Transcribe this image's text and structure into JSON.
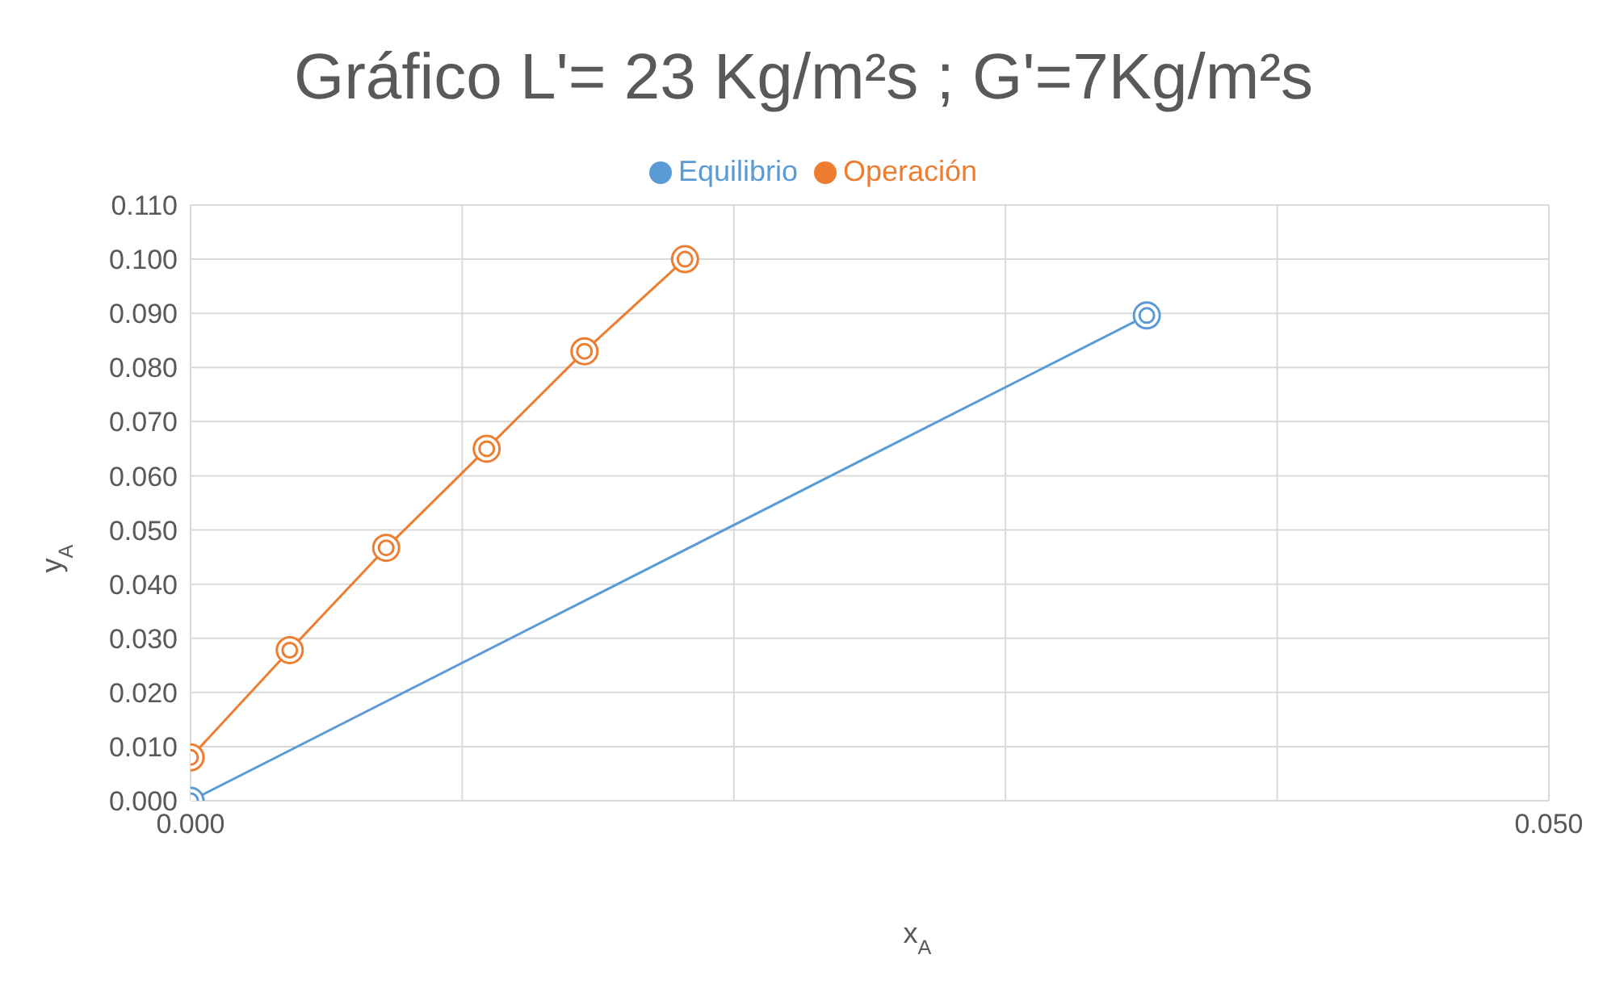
{
  "chart_data": {
    "type": "line",
    "title": "Gráfico L'= 23 Kg/m²s ; G'=7Kg/m²s",
    "xlabel": "x$_{A}$",
    "ylabel": "y$_{A}$",
    "series": [
      {
        "name": "Equilibrio",
        "color": "#5b9bd5",
        "x": [
          0,
          0.0352
        ],
        "values": [
          0,
          0.0896
        ]
      },
      {
        "name": "Operación",
        "color": "#ed7d31",
        "x": [
          0,
          0.00365,
          0.0072,
          0.0109,
          0.0145,
          0.0182
        ],
        "values": [
          0.008,
          0.0278,
          0.0467,
          0.065,
          0.083,
          0.1
        ]
      }
    ],
    "xlim": [
      0,
      0.05
    ],
    "xticks": [
      {
        "value": 0,
        "label": "0.000"
      },
      {
        "value": 0.01,
        "label": null
      },
      {
        "value": 0.02,
        "label": null
      },
      {
        "value": 0.03,
        "label": null
      },
      {
        "value": 0.04,
        "label": null
      },
      {
        "value": 0.05,
        "label": "0.050"
      }
    ],
    "ylim": [
      0,
      0.11
    ],
    "yticks": [
      {
        "value": 0,
        "label": "0.000"
      },
      {
        "value": 0.01,
        "label": "0.010"
      },
      {
        "value": 0.02,
        "label": "0.020"
      },
      {
        "value": 0.03,
        "label": "0.030"
      },
      {
        "value": 0.04,
        "label": "0.040"
      },
      {
        "value": 0.05,
        "label": "0.050"
      },
      {
        "value": 0.06,
        "label": "0.060"
      },
      {
        "value": 0.07,
        "label": "0.070"
      },
      {
        "value": 0.08,
        "label": "0.080"
      },
      {
        "value": 0.09,
        "label": "0.090"
      },
      {
        "value": 0.1,
        "label": "0.100"
      },
      {
        "value": 0.11,
        "label": "0.110"
      }
    ],
    "grid": true,
    "legend": "top",
    "marker": "circle",
    "line_style": "solid"
  }
}
